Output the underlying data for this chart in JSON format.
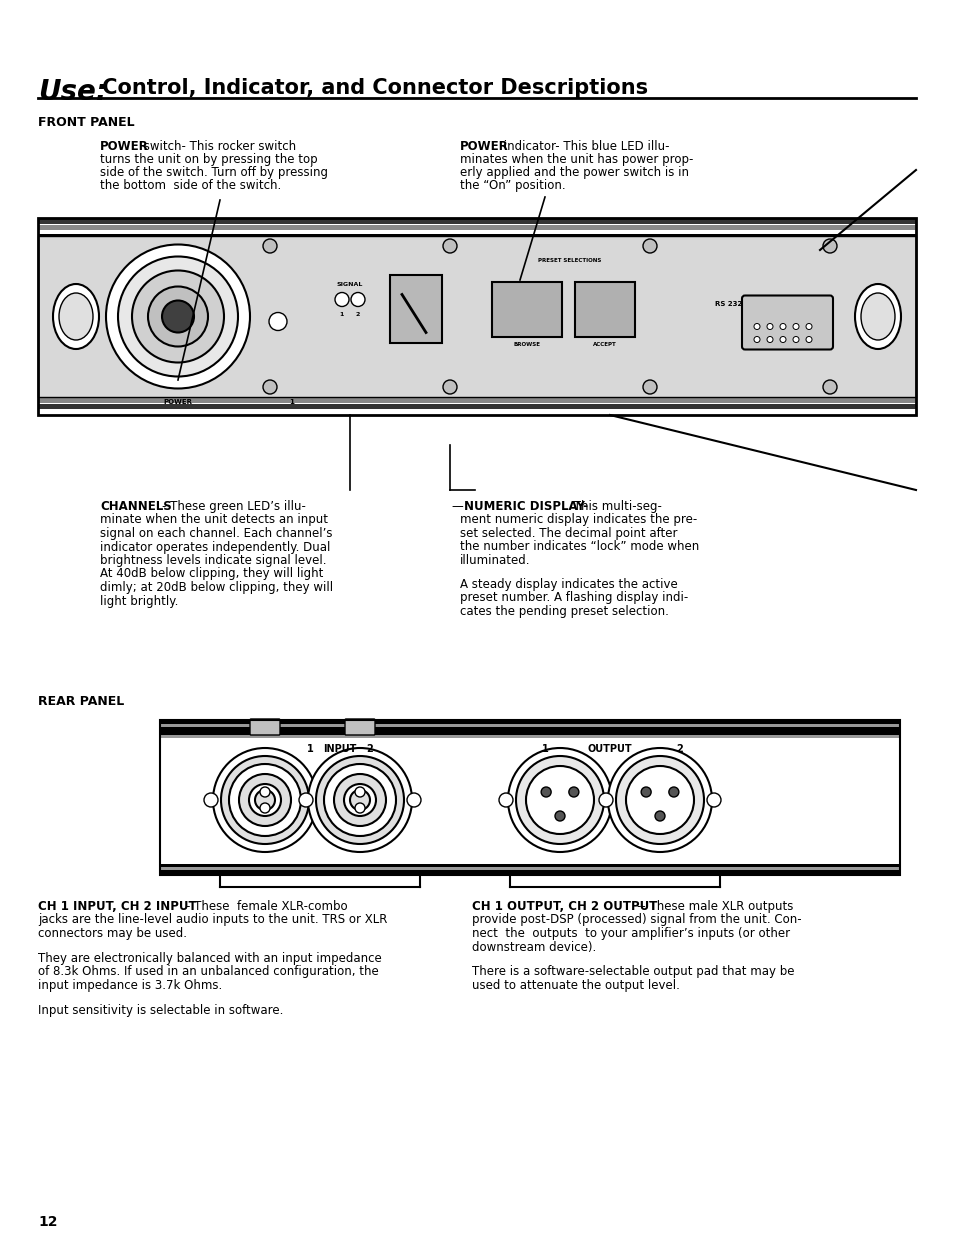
{
  "bg_color": "#ffffff",
  "page_number": "12",
  "title_use": "Use:",
  "title_rest": " Control, Indicator, and Connector Descriptions",
  "section1": "FRONT PANEL",
  "section2": "REAR PANEL",
  "power_switch_bold": "POWER",
  "power_switch_rest": " switch- This rocker switch\nturns the unit on by pressing the top\nside of the switch. Turn off by pressing\nthe bottom  side of the switch.",
  "power_ind_bold": "POWER",
  "power_ind_rest": " indicator- This blue LED illu-\nminates when the unit has power prop-\nerly applied and the power switch is in\nthe “On” position.",
  "channels_bold": "CHANNELS",
  "channels_rest": "- These green LED’s illu-\nminate when the unit detects an input\nsignal on each channel. Each channel’s\nindicator operates independently. Dual\nbrightness levels indicate signal level.\nAt 40dB below clipping, they will light\ndimly; at 20dB below clipping, they will\nlight brightly.",
  "numeric_bold": "NUMERIC DISPLAY-",
  "numeric_rest": " This multi-seg-\nment numeric display indicates the pre-\nset selected. The decimal point after\nthe number indicates “lock” mode when\nilluminated.",
  "numeric_rest2": "A steady display indicates the active\npreset number. A flashing display indi-\ncates the pending preset selection.",
  "ch_input_bold": "CH 1 INPUT, CH 2 INPUT",
  "ch_input_rest1": "- These  female XLR-combo",
  "ch_input_rest2": "jacks are the line-level audio inputs to the unit. TRS or XLR\nconnectors may be used.",
  "ch_input_p2": "They are electronically balanced with an input impedance\nof 8.3k Ohms. If used in an unbalanced configuration, the\ninput impedance is 3.7k Ohms.",
  "ch_input_p3": "Input sensitivity is selectable in software.",
  "ch_output_bold": "CH 1 OUTPUT, CH 2 OUTPUT",
  "ch_output_rest1": "-- These male XLR outputs",
  "ch_output_rest2": "provide post-DSP (processed) signal from the unit. Con-\nnect  the  outputs  to your amplifier’s inputs (or other\ndownstream device).",
  "ch_output_p2": "There is a software-selectable output pad that may be\nused to attenuate the output level."
}
